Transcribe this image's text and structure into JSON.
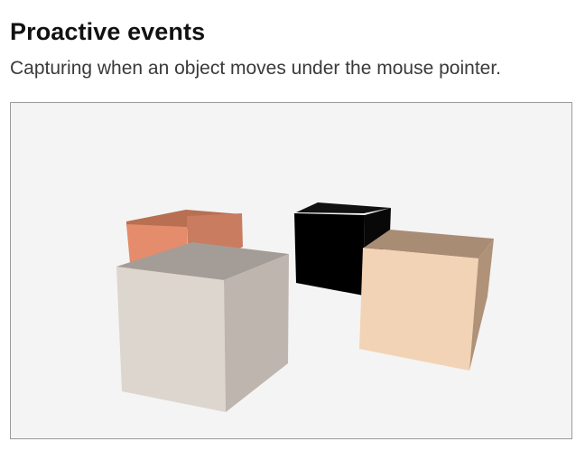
{
  "header": {
    "title": "Proactive events",
    "subtitle": "Capturing when an object moves under the mouse pointer."
  },
  "scene": {
    "background": "#f4f4f4",
    "objects": [
      {
        "name": "orange-cube",
        "top": "#b86f52",
        "front": "#e48c6b",
        "side": "#c97c60"
      },
      {
        "name": "black-cube",
        "top": "#111111",
        "front": "#000000",
        "side": "#080808"
      },
      {
        "name": "white-cube",
        "top": "#a49d97",
        "front": "#ddd6ce",
        "side": "#beb5ae"
      },
      {
        "name": "peach-cube",
        "top": "#a98c74",
        "front": "#f3d3b5",
        "side": "#b09279"
      }
    ]
  }
}
